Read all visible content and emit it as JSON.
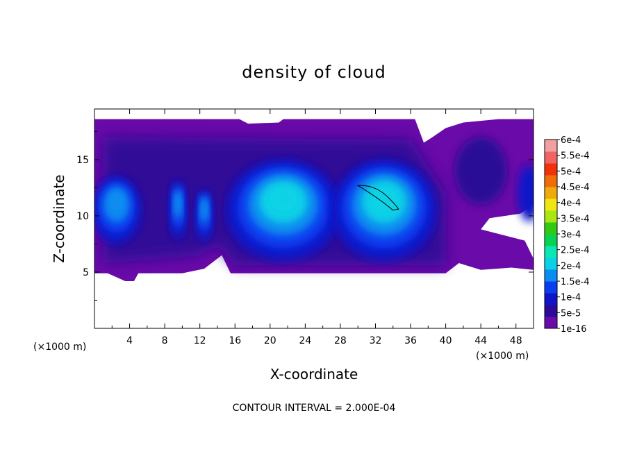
{
  "chart_data": {
    "type": "heatmap",
    "title": "density of cloud",
    "xlabel": "X-coordinate",
    "ylabel": "Z-coordinate",
    "x_unit": "(×1000 m)",
    "y_unit": "(×1000 m)",
    "xlim": [
      0,
      50
    ],
    "ylim": [
      0,
      19.5
    ],
    "x_ticks": [
      "4",
      "8",
      "12",
      "16",
      "20",
      "24",
      "28",
      "32",
      "36",
      "40",
      "44",
      "48"
    ],
    "y_ticks": [
      "5",
      "10",
      "15"
    ],
    "contour_note": "CONTOUR INTERVAL = 2.000E-04",
    "colorbar": {
      "labels": [
        "1e-16",
        "5e-5",
        "1e-4",
        "1.5e-4",
        "2e-4",
        "2.5e-4",
        "3e-4",
        "3.5e-4",
        "4e-4",
        "4.5e-4",
        "5e-4",
        "5.5e-4",
        "6e-4"
      ],
      "colors": [
        "#6a0aa8",
        "#2a0a96",
        "#1014c8",
        "#0a3cf0",
        "#0a8cf0",
        "#0ad2e6",
        "#0ae6b4",
        "#0ad250",
        "#32c814",
        "#a8e614",
        "#f0e614",
        "#f0aa0a",
        "#f06e0a",
        "#f0320a",
        "#f06464",
        "#f0a0a0"
      ]
    },
    "cloud": {
      "z_bottom": 4.9,
      "z_top": 18.6,
      "z_bottom_left_patch": 4.2,
      "cores": [
        {
          "x_center": 2.5,
          "z_center": 10.5,
          "x_radius": 2.8,
          "z_radius": 3.0,
          "level": 0.00015
        },
        {
          "x_center": 9.5,
          "z_center": 10.5,
          "x_radius": 1.0,
          "z_radius": 2.6,
          "level": 0.00015
        },
        {
          "x_center": 12.5,
          "z_center": 10.0,
          "x_radius": 1.0,
          "z_radius": 2.3,
          "level": 0.00015
        },
        {
          "x_center": 21.5,
          "z_center": 10.5,
          "x_radius": 6.5,
          "z_radius": 4.5,
          "level": 0.00018
        },
        {
          "x_center": 33.0,
          "z_center": 10.5,
          "x_radius": 6.0,
          "z_radius": 4.5,
          "level": 0.0002
        }
      ],
      "contour_max_near": {
        "x": 32.0,
        "z": 11.8
      }
    }
  }
}
